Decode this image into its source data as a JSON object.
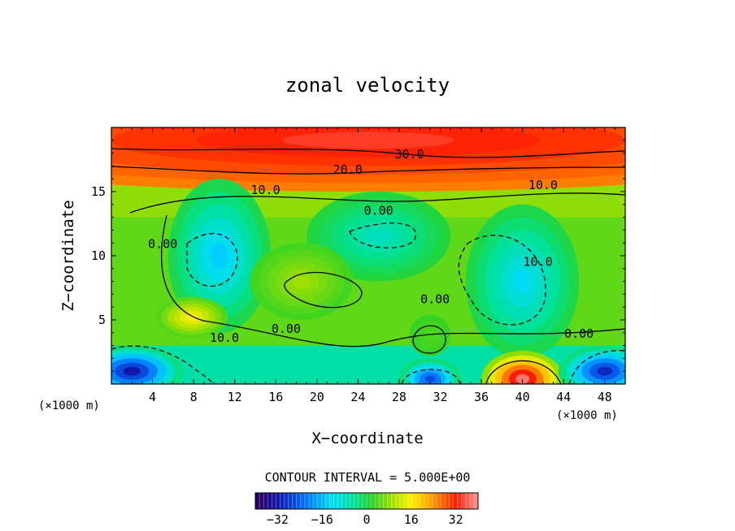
{
  "chart_data": {
    "type": "heatmap",
    "title": "zonal velocity",
    "xlabel": "X−coordinate",
    "ylabel": "Z−coordinate",
    "x_unit_left": "(×1000 m)",
    "x_unit_right": "(×1000 m)",
    "xlim": [
      0,
      50
    ],
    "ylim": [
      0,
      20
    ],
    "x_ticks": [
      4,
      8,
      12,
      16,
      20,
      24,
      28,
      32,
      36,
      40,
      44,
      48
    ],
    "y_ticks": [
      5,
      10,
      15
    ],
    "contour_interval_text": "CONTOUR INTERVAL = 5.000E+00",
    "colorbar": {
      "min": -40,
      "max": 40,
      "ticks": [
        -32,
        -16,
        0,
        16,
        32
      ],
      "tick_labels": [
        "−32",
        "−16",
        "0",
        "16",
        "32"
      ]
    },
    "contour_labels": [
      {
        "text": "30.0",
        "x": 29,
        "y": 17.6
      },
      {
        "text": "20.0",
        "x": 23,
        "y": 16.4
      },
      {
        "text": "10.0",
        "x": 15,
        "y": 14.8
      },
      {
        "text": "10.0",
        "x": 42,
        "y": 15.2
      },
      {
        "text": "0.00",
        "x": 26,
        "y": 13.2
      },
      {
        "text": "0.00",
        "x": 5,
        "y": 10.6
      },
      {
        "text": "10.0",
        "x": 41.5,
        "y": 9.2
      },
      {
        "text": "0.00",
        "x": 31.5,
        "y": 6.3
      },
      {
        "text": "0.00",
        "x": 17,
        "y": 4.0
      },
      {
        "text": "10.0",
        "x": 11,
        "y": 3.3
      },
      {
        "text": "0.00",
        "x": 45.5,
        "y": 3.6
      }
    ],
    "features": [
      {
        "value": 34,
        "x": 25,
        "y": 19,
        "desc": "strong eastward jet at top"
      },
      {
        "value": -14,
        "x": 10.5,
        "y": 10,
        "desc": "westward core"
      },
      {
        "value": -12,
        "x": 40,
        "y": 8,
        "desc": "westward core"
      },
      {
        "value": -8,
        "x": 26,
        "y": 11.5,
        "desc": "westward core"
      },
      {
        "value": 9,
        "x": 18.5,
        "y": 8,
        "desc": "weak eastward core"
      },
      {
        "value": 16,
        "x": 7.8,
        "y": 5.2,
        "desc": "eastward core"
      },
      {
        "value": 38,
        "x": 40,
        "y": 0.4,
        "desc": "surface eastward core"
      },
      {
        "value": -32,
        "x": 2,
        "y": 1,
        "desc": "surface westward core"
      },
      {
        "value": -30,
        "x": 48,
        "y": 1,
        "desc": "surface westward core"
      },
      {
        "value": -26,
        "x": 31,
        "y": 0.4,
        "desc": "surface westward core"
      },
      {
        "value": 4,
        "x": 31,
        "y": 3.8,
        "desc": "small eastward core"
      }
    ]
  }
}
